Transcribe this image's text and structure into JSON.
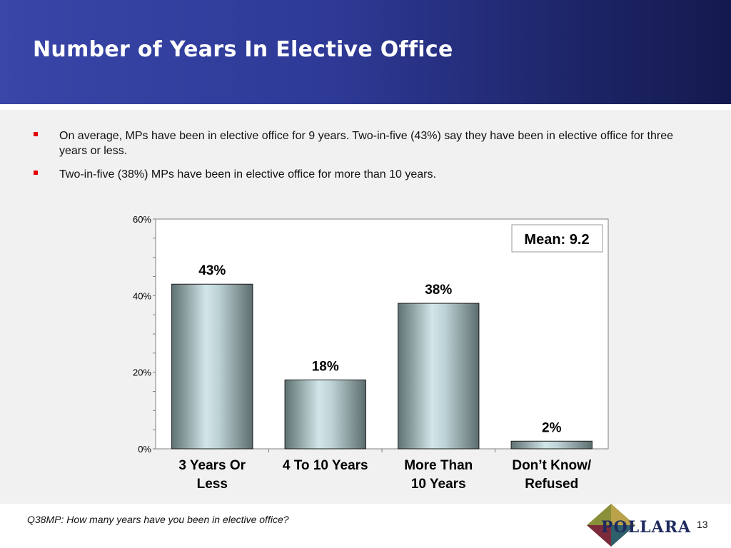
{
  "slide": {
    "title": "Number of Years In Elective Office",
    "bullets": [
      "On average, MPs have been in elective office for 9 years.  Two-in-five (43%) say they have been in elective office for three years or less.",
      "Two-in-five (38%) MPs have been in elective office for more than 10 years."
    ],
    "footnote": "Q38MP: How many years have you been in elective office?",
    "page_number": "13",
    "logo_text": "POLLARA",
    "colors": {
      "header_dark": "#141a4e",
      "header_light": "#3a46a8",
      "bullet": "#e60000",
      "panel": "#f1f1f1"
    }
  },
  "chart_data": {
    "type": "bar",
    "categories": [
      [
        "3 Years Or",
        "Less"
      ],
      [
        "4 To 10 Years"
      ],
      [
        "More Than",
        "10 Years"
      ],
      [
        "Don’t Know/",
        "Refused"
      ]
    ],
    "values": [
      43,
      18,
      38,
      2
    ],
    "data_labels": [
      "43%",
      "18%",
      "38%",
      "2%"
    ],
    "ylim": [
      0,
      60
    ],
    "yticks": [
      0,
      20,
      40,
      60
    ],
    "ytick_labels": [
      "0%",
      "20%",
      "40%",
      "60%"
    ],
    "minor_tick_step": 5,
    "annotation": "Mean: 9.2",
    "grid": false,
    "legend": "none"
  }
}
